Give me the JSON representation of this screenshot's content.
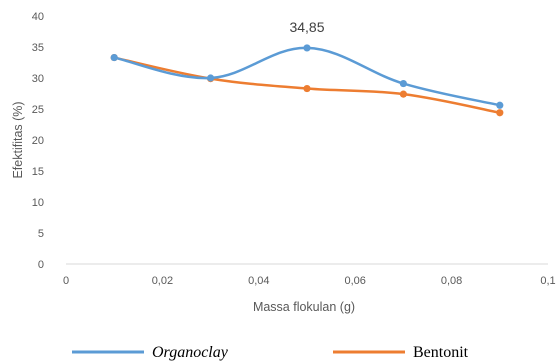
{
  "chart_data": {
    "type": "line",
    "title": "",
    "xlabel": "Massa flokulan (g)",
    "ylabel": "Efektifitas (%)",
    "xlim": [
      0,
      0.1
    ],
    "ylim": [
      0,
      40
    ],
    "x_ticks": [
      0,
      0.02,
      0.04,
      0.06,
      0.08,
      0.1
    ],
    "x_tick_labels": [
      "0",
      "0,02",
      "0,04",
      "0,06",
      "0,08",
      "0,1"
    ],
    "y_ticks": [
      0,
      5,
      10,
      15,
      20,
      25,
      30,
      35,
      40
    ],
    "y_tick_labels": [
      "0",
      "5",
      "10",
      "15",
      "20",
      "25",
      "30",
      "35",
      "40"
    ],
    "grid": false,
    "legend_position": "bottom",
    "series": [
      {
        "name": "Organoclay",
        "color": "#5B9BD5",
        "x": [
          0.01,
          0.03,
          0.05,
          0.07,
          0.09
        ],
        "y": [
          33.3,
          30.0,
          34.85,
          29.1,
          25.6
        ]
      },
      {
        "name": "Bentonit",
        "color": "#ED7D31",
        "x": [
          0.01,
          0.03,
          0.05,
          0.07,
          0.09
        ],
        "y": [
          33.3,
          29.9,
          28.3,
          27.4,
          24.4
        ]
      }
    ],
    "annotations": [
      {
        "text": "34,85",
        "x": 0.05,
        "y": 34.85
      }
    ]
  }
}
